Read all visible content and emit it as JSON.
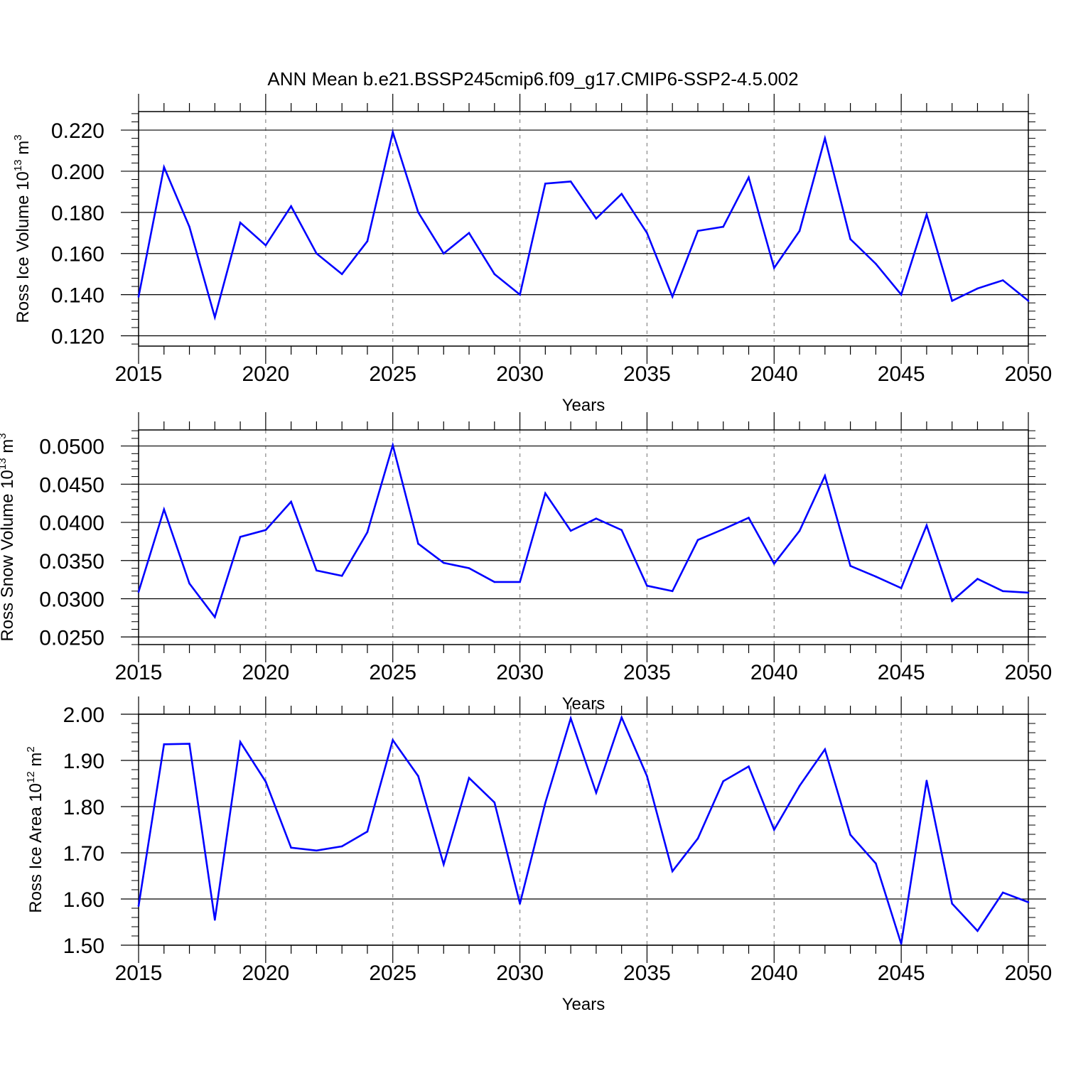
{
  "title": "ANN Mean b.e21.BSSP245cmip6.f09_g17.CMIP6-SSP2-4.5.002",
  "chart_data": [
    {
      "type": "line",
      "xlabel": "Years",
      "ylabel_parts": {
        "main": "Ross Ice Volume 10",
        "sup": "13",
        "unit": " m",
        "unit_sup": "3"
      },
      "xlim": [
        2015,
        2050
      ],
      "ylim": [
        0.115,
        0.229
      ],
      "xticks": [
        2015,
        2020,
        2025,
        2030,
        2035,
        2040,
        2045,
        2050
      ],
      "xtick_labels": [
        "2015",
        "2020",
        "2025",
        "2030",
        "2035",
        "2040",
        "2045",
        "2050"
      ],
      "yticks": [
        0.12,
        0.14,
        0.16,
        0.18,
        0.2,
        0.22
      ],
      "ytick_labels": [
        "0.120",
        "0.140",
        "0.160",
        "0.180",
        "0.200",
        "0.220"
      ],
      "color": "#0000ff",
      "gridlines_x": [
        2020,
        2025,
        2030,
        2035,
        2040,
        2045
      ],
      "x": [
        2015,
        2016,
        2017,
        2018,
        2019,
        2020,
        2021,
        2022,
        2023,
        2024,
        2025,
        2026,
        2027,
        2028,
        2029,
        2030,
        2031,
        2032,
        2033,
        2034,
        2035,
        2036,
        2037,
        2038,
        2039,
        2040,
        2041,
        2042,
        2043,
        2044,
        2045,
        2046,
        2047,
        2048,
        2049,
        2050
      ],
      "values": [
        0.139,
        0.202,
        0.173,
        0.129,
        0.175,
        0.164,
        0.183,
        0.16,
        0.15,
        0.166,
        0.219,
        0.18,
        0.16,
        0.17,
        0.15,
        0.14,
        0.194,
        0.195,
        0.177,
        0.189,
        0.17,
        0.139,
        0.171,
        0.173,
        0.197,
        0.153,
        0.171,
        0.216,
        0.167,
        0.155,
        0.14,
        0.179,
        0.137,
        0.143,
        0.147,
        0.137
      ]
    },
    {
      "type": "line",
      "xlabel": "Years",
      "ylabel_parts": {
        "main": "Ross Snow Volume 10",
        "sup": "13",
        "unit": " m",
        "unit_sup": "3"
      },
      "xlim": [
        2015,
        2050
      ],
      "ylim": [
        0.024,
        0.0521
      ],
      "xticks": [
        2015,
        2020,
        2025,
        2030,
        2035,
        2040,
        2045,
        2050
      ],
      "xtick_labels": [
        "2015",
        "2020",
        "2025",
        "2030",
        "2035",
        "2040",
        "2045",
        "2050"
      ],
      "yticks": [
        0.025,
        0.03,
        0.035,
        0.04,
        0.045,
        0.05
      ],
      "ytick_labels": [
        "0.0250",
        "0.0300",
        "0.0350",
        "0.0400",
        "0.0450",
        "0.0500"
      ],
      "color": "#0000ff",
      "gridlines_x": [
        2020,
        2025,
        2030,
        2035,
        2040,
        2045
      ],
      "x": [
        2015,
        2016,
        2017,
        2018,
        2019,
        2020,
        2021,
        2022,
        2023,
        2024,
        2025,
        2026,
        2027,
        2028,
        2029,
        2030,
        2031,
        2032,
        2033,
        2034,
        2035,
        2036,
        2037,
        2038,
        2039,
        2040,
        2041,
        2042,
        2043,
        2044,
        2045,
        2046,
        2047,
        2048,
        2049,
        2050
      ],
      "values": [
        0.0309,
        0.0417,
        0.032,
        0.0276,
        0.0381,
        0.039,
        0.0427,
        0.0337,
        0.033,
        0.0387,
        0.0501,
        0.0372,
        0.0347,
        0.034,
        0.0322,
        0.0322,
        0.0438,
        0.0389,
        0.0405,
        0.039,
        0.0317,
        0.031,
        0.0377,
        0.0391,
        0.0406,
        0.0346,
        0.0389,
        0.0461,
        0.0343,
        0.0329,
        0.0314,
        0.0396,
        0.0297,
        0.0326,
        0.031,
        0.0308
      ]
    },
    {
      "type": "line",
      "xlabel": "Years",
      "ylabel_parts": {
        "main": "Ross Ice Area 10",
        "sup": "12",
        "unit": " m",
        "unit_sup": "2"
      },
      "xlim": [
        2015,
        2050
      ],
      "ylim": [
        1.5,
        2.0
      ],
      "xticks": [
        2015,
        2020,
        2025,
        2030,
        2035,
        2040,
        2045,
        2050
      ],
      "xtick_labels": [
        "2015",
        "2020",
        "2025",
        "2030",
        "2035",
        "2040",
        "2045",
        "2050"
      ],
      "yticks": [
        1.5,
        1.6,
        1.7,
        1.8,
        1.9,
        2.0
      ],
      "ytick_labels": [
        "1.50",
        "1.60",
        "1.70",
        "1.80",
        "1.90",
        "2.00"
      ],
      "color": "#0000ff",
      "gridlines_x": [
        2020,
        2025,
        2030,
        2035,
        2040,
        2045
      ],
      "x": [
        2015,
        2016,
        2017,
        2018,
        2019,
        2020,
        2021,
        2022,
        2023,
        2024,
        2025,
        2026,
        2027,
        2028,
        2029,
        2030,
        2031,
        2032,
        2033,
        2034,
        2035,
        2036,
        2037,
        2038,
        2039,
        2040,
        2041,
        2042,
        2043,
        2044,
        2045,
        2046,
        2047,
        2048,
        2049,
        2050
      ],
      "values": [
        1.585,
        1.935,
        1.936,
        1.555,
        1.94,
        1.854,
        1.711,
        1.705,
        1.714,
        1.746,
        1.944,
        1.866,
        1.675,
        1.862,
        1.809,
        1.59,
        1.808,
        1.991,
        1.83,
        1.993,
        1.866,
        1.66,
        1.731,
        1.855,
        1.887,
        1.75,
        1.845,
        1.924,
        1.739,
        1.677,
        1.503,
        1.856,
        1.59,
        1.531,
        1.614,
        1.593
      ]
    }
  ]
}
